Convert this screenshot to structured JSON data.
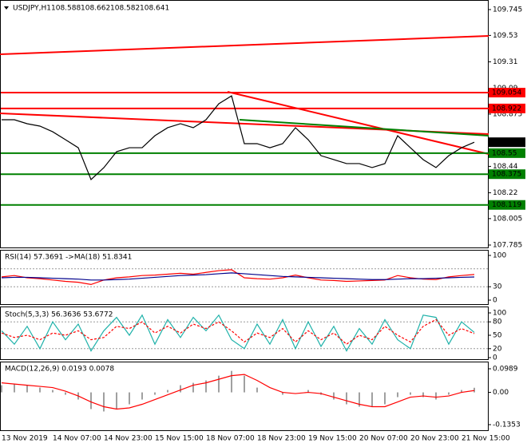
{
  "symbol": "USDJPY,H1",
  "ohlc": [
    "108.588",
    "108.662",
    "108.582",
    "108.641"
  ],
  "x_labels": [
    "13 Nov 2019",
    "14 Nov 07:00",
    "14 Nov 23:00",
    "15 Nov 15:00",
    "18 Nov 07:00",
    "18 Nov 23:00",
    "19 Nov 15:00",
    "20 Nov 07:00",
    "20 Nov 23:00",
    "21 Nov 15:00"
  ],
  "main": {
    "type": "line",
    "ylim": [
      107.785,
      109.745
    ],
    "yticks": [
      109.745,
      109.53,
      109.31,
      109.09,
      108.875,
      108.44,
      108.22,
      108.005,
      107.785
    ],
    "close": [
      108.828,
      108.828,
      108.795,
      108.775,
      108.728,
      108.662,
      108.595,
      108.33,
      108.429,
      108.562,
      108.595,
      108.595,
      108.695,
      108.762,
      108.795,
      108.762,
      108.828,
      108.961,
      109.027,
      108.629,
      108.629,
      108.595,
      108.629,
      108.762,
      108.662,
      108.529,
      108.496,
      108.463,
      108.463,
      108.43,
      108.463,
      108.695,
      108.595,
      108.496,
      108.43,
      108.529,
      108.595,
      108.641
    ],
    "color": "#000000",
    "levels": [
      {
        "value": 109.054,
        "color": "#ff0000"
      },
      {
        "value": 108.922,
        "color": "#ff0000"
      },
      {
        "value": 108.55,
        "color": "#008000"
      },
      {
        "value": 108.375,
        "color": "#008000"
      },
      {
        "value": 108.119,
        "color": "#008000"
      }
    ],
    "last": 108.641
  },
  "rsi": {
    "title": "RSI(14) 57.3691 ->MA(18) 51.8341",
    "ylim": [
      0,
      100
    ],
    "yticks": [
      100,
      30,
      0
    ],
    "levels": [
      70,
      30
    ],
    "rsi": [
      52,
      55,
      50,
      48,
      45,
      42,
      40,
      35,
      45,
      50,
      52,
      55,
      56,
      58,
      60,
      58,
      62,
      66,
      68,
      50,
      48,
      47,
      50,
      56,
      50,
      45,
      44,
      42,
      43,
      44,
      45,
      55,
      50,
      47,
      46,
      52,
      55,
      57.3691
    ],
    "ma": [
      50,
      51,
      51,
      50,
      49,
      48,
      47,
      45,
      45,
      46,
      47,
      49,
      51,
      53,
      55,
      56,
      57,
      59,
      61,
      59,
      57,
      55,
      53,
      52,
      51,
      50,
      49,
      48,
      47,
      46,
      46,
      47,
      48,
      48,
      49,
      50,
      51,
      51.8341
    ]
  },
  "stoch": {
    "title": "Stoch(5,3,3) 56.3636 53.6772",
    "ylim": [
      0,
      100
    ],
    "yticks": [
      100,
      80,
      50,
      20,
      0
    ],
    "levels": [
      80,
      20
    ],
    "main": [
      60,
      30,
      70,
      20,
      80,
      40,
      75,
      15,
      60,
      90,
      50,
      95,
      30,
      85,
      45,
      90,
      60,
      95,
      40,
      20,
      75,
      30,
      85,
      20,
      80,
      25,
      70,
      15,
      65,
      30,
      85,
      40,
      20,
      95,
      90,
      30,
      80,
      56.3636
    ],
    "signal": [
      55,
      45,
      50,
      40,
      55,
      50,
      60,
      40,
      45,
      70,
      65,
      80,
      55,
      70,
      55,
      75,
      65,
      80,
      60,
      35,
      55,
      45,
      65,
      35,
      60,
      40,
      55,
      30,
      50,
      40,
      70,
      50,
      35,
      70,
      85,
      50,
      65,
      53.6772
    ]
  },
  "macd": {
    "title": "MACD(12,26,9) 0.0193 0.0078",
    "ylim": [
      -0.1353,
      0.0989
    ],
    "yticks": [
      0.0989,
      {
        "value": 0,
        "label": "0.00"
      },
      -0.1353
    ],
    "main": [
      0.03,
      0.035,
      0.03,
      0.02,
      0.01,
      -0.01,
      -0.03,
      -0.07,
      -0.08,
      -0.07,
      -0.05,
      -0.03,
      -0.01,
      0.01,
      0.03,
      0.04,
      0.05,
      0.07,
      0.09,
      0.07,
      0.02,
      0,
      -0.01,
      0,
      0.01,
      -0.01,
      -0.03,
      -0.05,
      -0.06,
      -0.06,
      -0.05,
      -0.02,
      -0.01,
      -0.02,
      -0.03,
      -0.01,
      0.01,
      0.0193
    ],
    "signal": [
      0.04,
      0.035,
      0.03,
      0.025,
      0.02,
      0.005,
      -0.015,
      -0.04,
      -0.06,
      -0.07,
      -0.065,
      -0.05,
      -0.03,
      -0.01,
      0.01,
      0.03,
      0.04,
      0.055,
      0.07,
      0.075,
      0.05,
      0.02,
      0,
      -0.005,
      0,
      -0.005,
      -0.02,
      -0.035,
      -0.05,
      -0.06,
      -0.06,
      -0.04,
      -0.02,
      -0.015,
      -0.02,
      -0.015,
      0,
      0.0078
    ]
  }
}
